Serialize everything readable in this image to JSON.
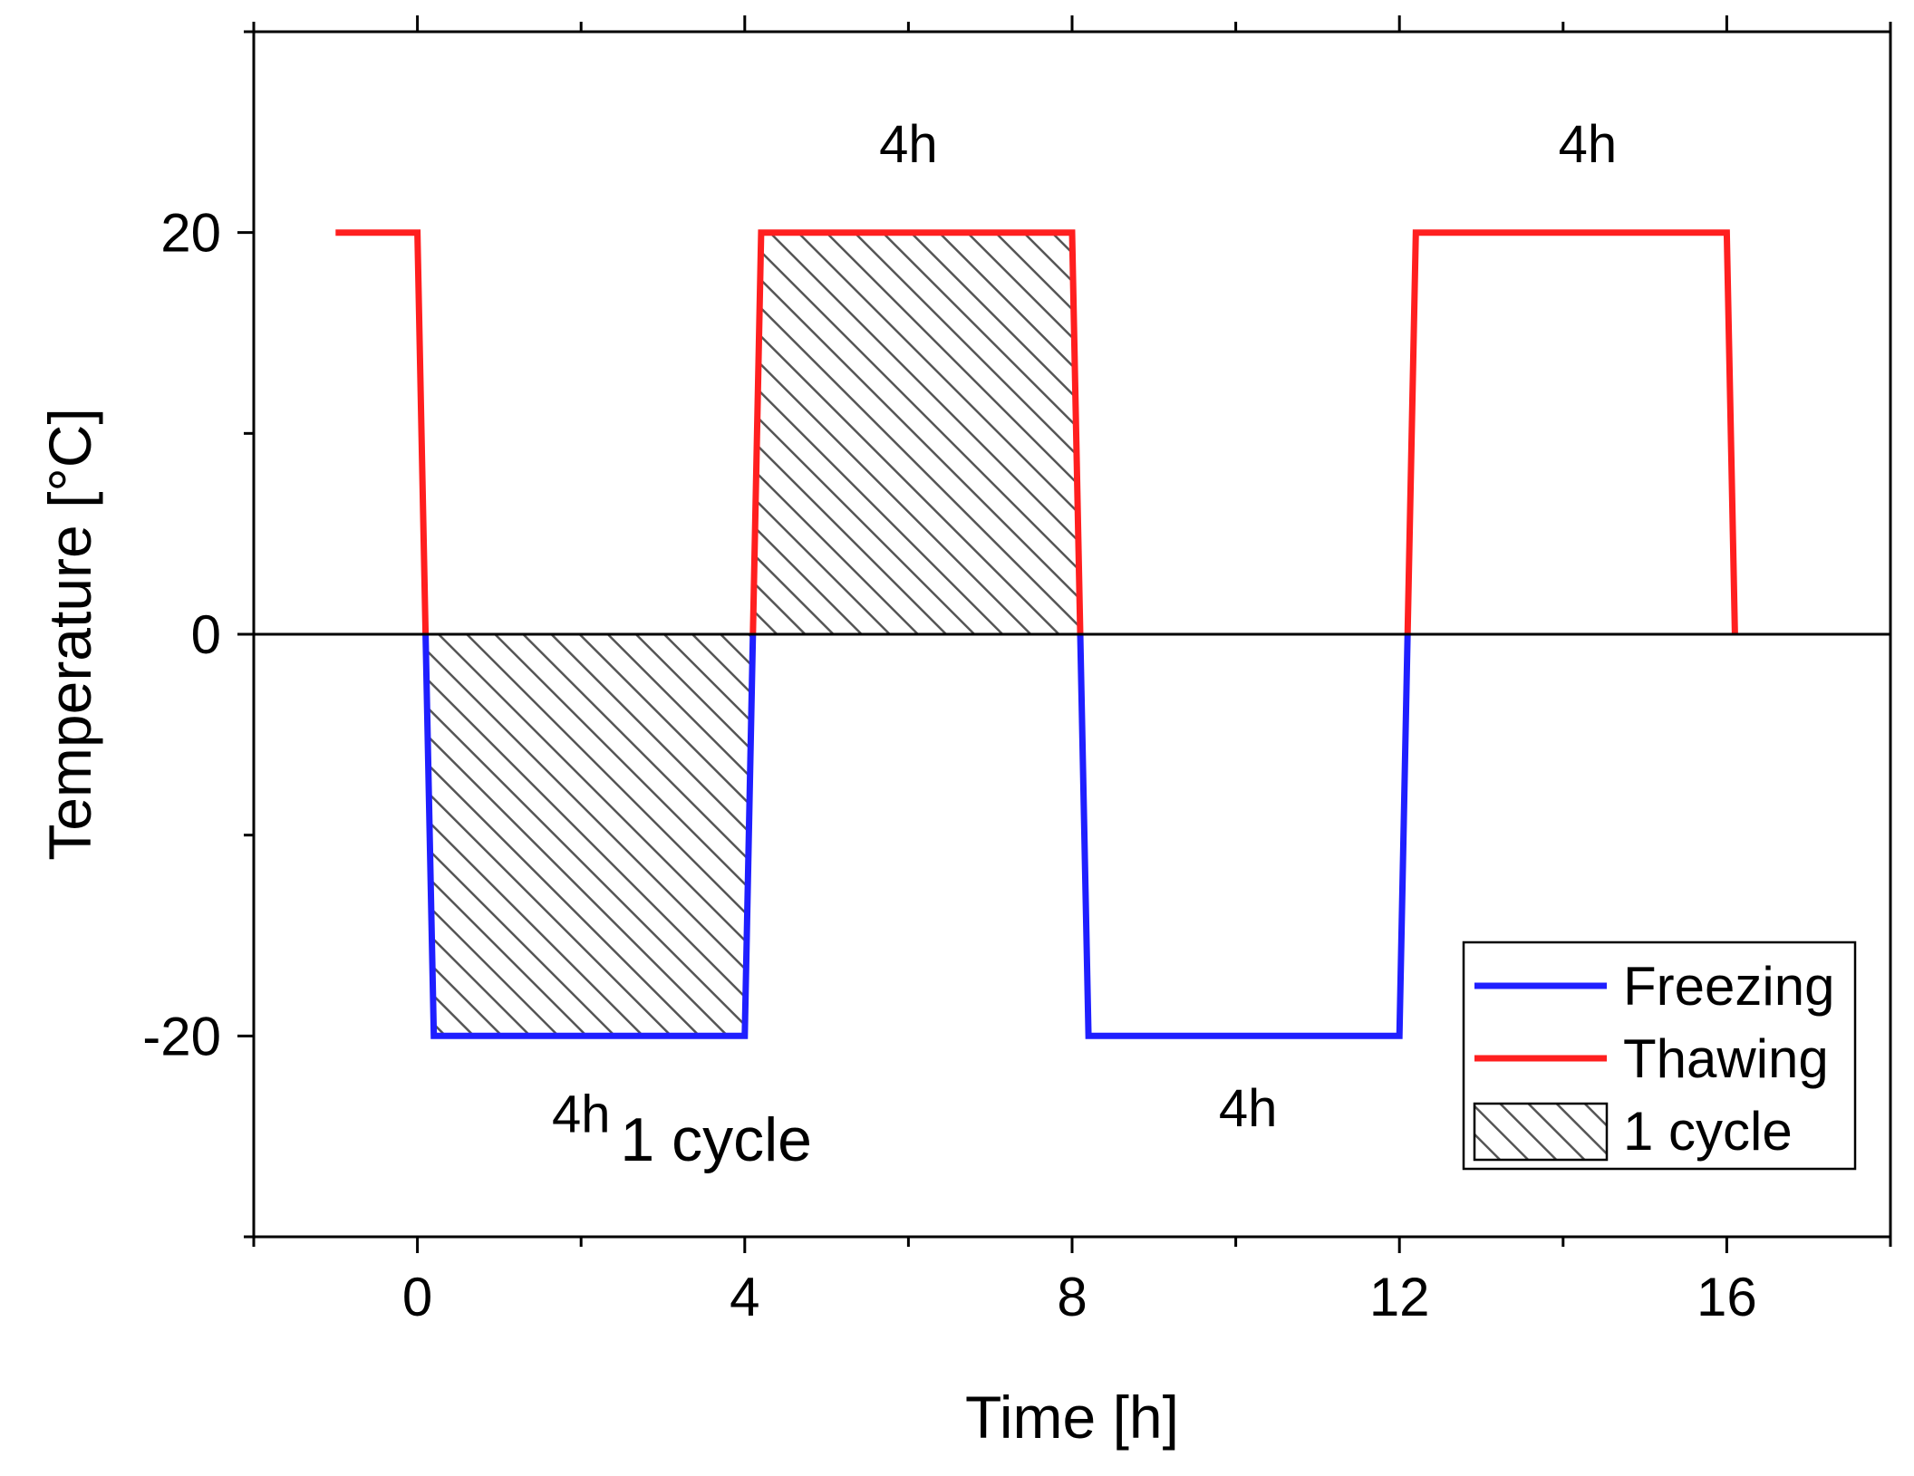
{
  "chart_data": {
    "type": "line",
    "xlabel": "Time [h]",
    "ylabel": "Temperature [°C]",
    "xlim": [
      -2,
      18
    ],
    "ylim": [
      -30,
      30
    ],
    "xticks": [
      0,
      4,
      8,
      12,
      16
    ],
    "xminor": [
      -2,
      2,
      6,
      10,
      14,
      18
    ],
    "yticks": [
      20,
      0,
      -20
    ],
    "yminor": [
      -30,
      -10,
      10,
      30
    ],
    "zero_line": 0,
    "series": [
      {
        "name": "Freezing",
        "color": "#1f1fff",
        "segments": [
          [
            [
              0.1,
              0
            ],
            [
              0.2,
              -20
            ],
            [
              4.0,
              -20
            ],
            [
              4.1,
              0
            ]
          ],
          [
            [
              8.1,
              0
            ],
            [
              8.2,
              -20
            ],
            [
              12.0,
              -20
            ],
            [
              12.1,
              0
            ]
          ]
        ]
      },
      {
        "name": "Thawing",
        "color": "#ff1f1f",
        "segments": [
          [
            [
              -1,
              20
            ],
            [
              0,
              20
            ],
            [
              0.1,
              0
            ]
          ],
          [
            [
              4.1,
              0
            ],
            [
              4.2,
              20
            ],
            [
              8.0,
              20
            ],
            [
              8.1,
              0
            ]
          ],
          [
            [
              12.1,
              0
            ],
            [
              12.2,
              20
            ],
            [
              16.0,
              20
            ],
            [
              16.1,
              0
            ]
          ]
        ]
      }
    ],
    "hatched_cycle": [
      [
        [
          0.1,
          0
        ],
        [
          0.2,
          -20
        ],
        [
          4.0,
          -20
        ],
        [
          4.1,
          0
        ]
      ],
      [
        [
          4.1,
          0
        ],
        [
          4.2,
          20
        ],
        [
          8.0,
          20
        ],
        [
          8.1,
          0
        ]
      ]
    ],
    "annotations": [
      {
        "text": "4h",
        "x": 6.0,
        "y": 23.5,
        "style": "anno"
      },
      {
        "text": "4h",
        "x": 14.3,
        "y": 23.5,
        "style": "anno"
      },
      {
        "text": "4h",
        "x": 2.0,
        "y": -24.8,
        "style": "anno"
      },
      {
        "text": "4h",
        "x": 10.15,
        "y": -24.5,
        "style": "anno-big2"
      },
      {
        "text": "1 cycle",
        "x": 3.65,
        "y": -26.2,
        "style": "anno-big"
      }
    ],
    "legend": {
      "position": "bottom-right",
      "entries": [
        {
          "label": "Freezing",
          "kind": "line",
          "color": "#1f1fff"
        },
        {
          "label": "Thawing",
          "kind": "line",
          "color": "#ff1f1f"
        },
        {
          "label": "1 cycle",
          "kind": "hatch"
        }
      ]
    }
  }
}
